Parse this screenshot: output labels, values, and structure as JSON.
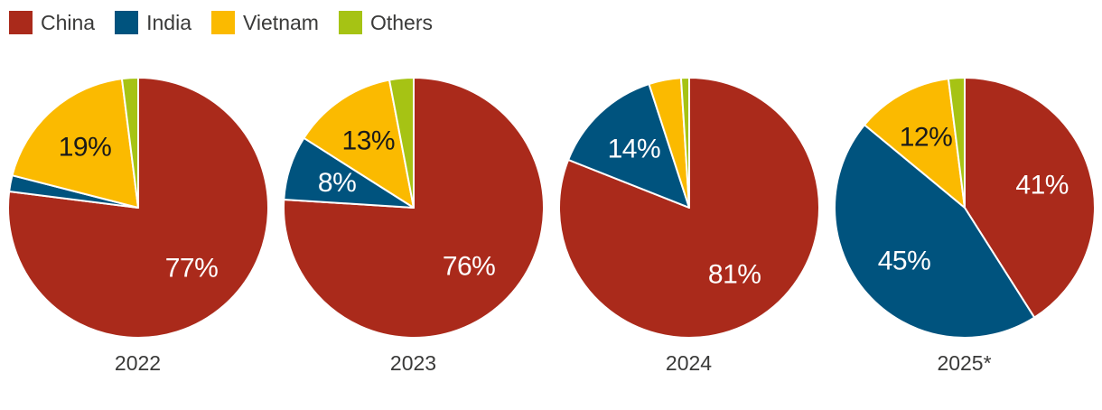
{
  "legend": {
    "items": [
      {
        "name": "China",
        "color": "#AA2A1B"
      },
      {
        "name": "India",
        "color": "#00537E"
      },
      {
        "name": "Vietnam",
        "color": "#FBBA00"
      },
      {
        "name": "Others",
        "color": "#A6C314"
      }
    ]
  },
  "colors": {
    "text": "#3A3A39",
    "slice_separator": "#FFFFFF"
  },
  "chart_data": {
    "type": "pie",
    "unit": "%",
    "categories": [
      "China",
      "India",
      "Vietnam",
      "Others"
    ],
    "series_colors": {
      "China": "#AA2A1B",
      "India": "#00537E",
      "Vietnam": "#FBBA00",
      "Others": "#A6C314"
    },
    "slice_label_text_colors": {
      "China": "#FFFFFF",
      "India": "#FFFFFF",
      "Vietnam": "#1A1A1A",
      "Others": "#1A1A1A"
    },
    "legend_position": "top-left",
    "start_angle_deg": 0,
    "direction": "clockwise",
    "pies": [
      {
        "year": "2022",
        "slices": [
          {
            "name": "China",
            "value": 77,
            "label": "77%"
          },
          {
            "name": "India",
            "value": 2,
            "label": ""
          },
          {
            "name": "Vietnam",
            "value": 19,
            "label": "19%"
          },
          {
            "name": "Others",
            "value": 2,
            "label": ""
          }
        ]
      },
      {
        "year": "2023",
        "slices": [
          {
            "name": "China",
            "value": 76,
            "label": "76%"
          },
          {
            "name": "India",
            "value": 8,
            "label": "8%"
          },
          {
            "name": "Vietnam",
            "value": 13,
            "label": "13%"
          },
          {
            "name": "Others",
            "value": 3,
            "label": ""
          }
        ]
      },
      {
        "year": "2024",
        "slices": [
          {
            "name": "China",
            "value": 81,
            "label": "81%"
          },
          {
            "name": "India",
            "value": 14,
            "label": "14%"
          },
          {
            "name": "Vietnam",
            "value": 4,
            "label": ""
          },
          {
            "name": "Others",
            "value": 1,
            "label": ""
          }
        ]
      },
      {
        "year": "2025*",
        "slices": [
          {
            "name": "China",
            "value": 41,
            "label": "41%"
          },
          {
            "name": "India",
            "value": 45,
            "label": "45%"
          },
          {
            "name": "Vietnam",
            "value": 12,
            "label": "12%"
          },
          {
            "name": "Others",
            "value": 2,
            "label": ""
          }
        ]
      }
    ]
  }
}
